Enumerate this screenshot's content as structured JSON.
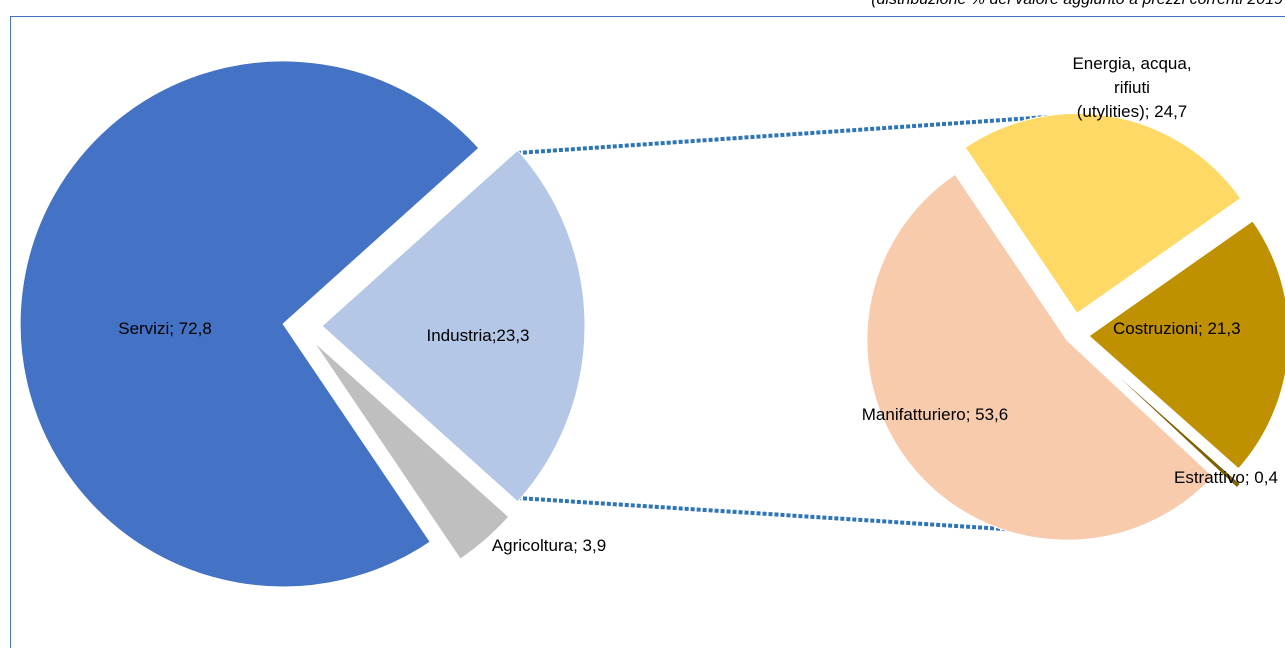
{
  "chart_data": [
    {
      "type": "pie",
      "subtitle": "(distribuzione % del valore aggiunto a prezzi correnti 2019",
      "values": [
        23.3,
        3.9,
        72.8
      ],
      "value_labels": [
        "Industria;23,3",
        "Agricoltura; 3,9",
        "Servizi; 72,8"
      ],
      "colors": [
        "#b4c7e7",
        "#bfbfbf",
        "#4472c4"
      ]
    },
    {
      "type": "pie",
      "values": [
        24.7,
        21.3,
        0.4,
        53.6
      ],
      "value_labels": [
        "Energia, acqua, rifiuti\n(utylities); 24,7",
        "Costruzioni; 21,3",
        "Estrattivo; 0,4",
        "Manifatturiero; 53,6"
      ],
      "colors": [
        "#ffd966",
        "#bf9000",
        "#7f6000",
        "#f8cbad"
      ]
    }
  ]
}
